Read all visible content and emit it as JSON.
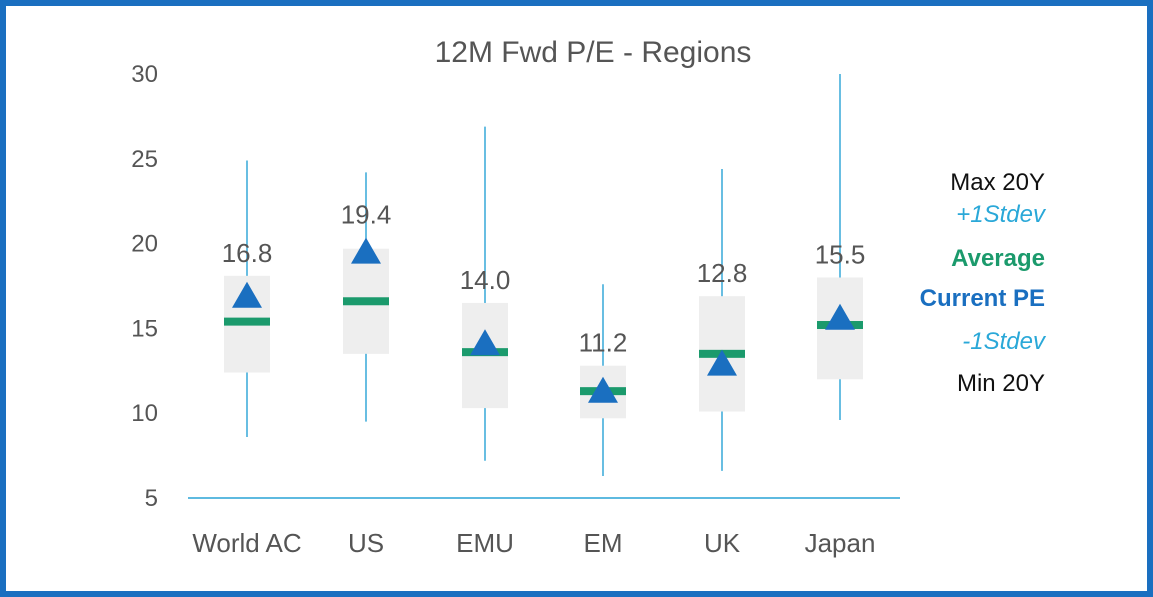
{
  "chart_data": {
    "type": "box",
    "title": "12M Fwd P/E - Regions",
    "ylim": [
      5,
      30
    ],
    "yticks": [
      5,
      10,
      15,
      20,
      25,
      30
    ],
    "categories": [
      {
        "name": "World AC",
        "min": 8.6,
        "max": 24.9,
        "sd_low": 12.4,
        "sd_high": 18.1,
        "average": 15.4,
        "current": 16.8,
        "current_label": "16.8"
      },
      {
        "name": "US",
        "min": 9.5,
        "max": 24.2,
        "sd_low": 13.5,
        "sd_high": 19.7,
        "average": 16.6,
        "current": 19.4,
        "current_label": "19.4"
      },
      {
        "name": "EMU",
        "min": 7.2,
        "max": 26.9,
        "sd_low": 10.3,
        "sd_high": 16.5,
        "average": 13.6,
        "current": 14.0,
        "current_label": "14.0"
      },
      {
        "name": "EM",
        "min": 6.3,
        "max": 17.6,
        "sd_low": 9.7,
        "sd_high": 12.8,
        "average": 11.3,
        "current": 11.2,
        "current_label": "11.2"
      },
      {
        "name": "UK",
        "min": 6.6,
        "max": 24.4,
        "sd_low": 10.1,
        "sd_high": 16.9,
        "average": 13.5,
        "current": 12.8,
        "current_label": "12.8"
      },
      {
        "name": "Japan",
        "min": 9.6,
        "max": 30.0,
        "sd_low": 12.0,
        "sd_high": 18.0,
        "average": 15.2,
        "current": 15.5,
        "current_label": "15.5"
      }
    ],
    "legend": [
      {
        "label": "Max 20Y",
        "color": "#111111",
        "weight": "normal",
        "style": "normal"
      },
      {
        "label": "+1Stdev",
        "color": "#2aa8d8",
        "weight": "normal",
        "style": "italic"
      },
      {
        "label": "Average",
        "color": "#1b9a6c",
        "weight": "bold",
        "style": "normal"
      },
      {
        "label": "Current PE",
        "color": "#1a6fc0",
        "weight": "bold",
        "style": "normal"
      },
      {
        "label": "-1Stdev",
        "color": "#2aa8d8",
        "weight": "normal",
        "style": "italic"
      },
      {
        "label": "Min 20Y",
        "color": "#111111",
        "weight": "normal",
        "style": "normal"
      }
    ],
    "colors": {
      "whisker": "#29a3d6",
      "box": "#eeeeee",
      "average": "#1b9a6c",
      "current": "#1a6fc0",
      "axis": "#29a3d6",
      "frame": "#1a6fc0"
    }
  }
}
